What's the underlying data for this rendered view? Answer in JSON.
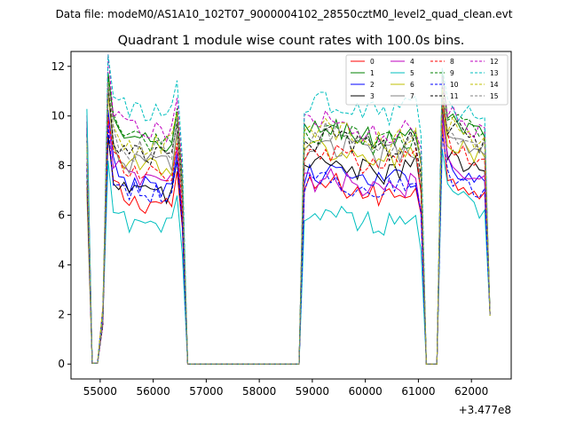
{
  "chart_data": {
    "type": "line",
    "suptitle": "Data file: modeM0/AS1A10_102T07_9000004102_28550cztM0_level2_quad_clean.evt",
    "title": "Quadrant 1 module wise count rates with 100.0s bins.",
    "xlabel": "",
    "ylabel": "",
    "x_offset_label": "+3.477e8",
    "xlim": [
      54450,
      62750
    ],
    "ylim": [
      -0.6,
      12.6
    ],
    "x_ticks": [
      55000,
      56000,
      57000,
      58000,
      59000,
      60000,
      61000,
      62000
    ],
    "x_tick_labels": [
      "55000",
      "56000",
      "57000",
      "58000",
      "59000",
      "60000",
      "61000",
      "62000"
    ],
    "y_ticks": [
      0,
      2,
      4,
      6,
      8,
      10,
      12
    ],
    "y_tick_labels": [
      "0",
      "2",
      "4",
      "6",
      "8",
      "10",
      "12"
    ],
    "grid": false,
    "legend_position": "upper right",
    "legend_columns": 4,
    "segments": [
      {
        "x_start": 54750,
        "x_end": 56550,
        "step": 100
      },
      {
        "x_start": 56550,
        "x_end": 58750,
        "step": 100,
        "constant": 0
      },
      {
        "x_start": 58750,
        "x_end": 61150,
        "step": 100
      },
      {
        "x_start": 61150,
        "x_end": 61350,
        "step": 100,
        "constant": 0
      },
      {
        "x_start": 61350,
        "x_end": 62350,
        "step": 100
      }
    ],
    "series": [
      {
        "name": "0",
        "color": "#ff0000",
        "dash": "solid",
        "segment_levels": [
          6.5,
          7.0,
          6.6
        ]
      },
      {
        "name": "1",
        "color": "#008000",
        "dash": "solid",
        "segment_levels": [
          8.9,
          9.3,
          8.8
        ]
      },
      {
        "name": "2",
        "color": "#0000ff",
        "dash": "solid",
        "segment_levels": [
          7.2,
          7.5,
          7.0
        ]
      },
      {
        "name": "3",
        "color": "#000000",
        "dash": "solid",
        "segment_levels": [
          6.9,
          7.9,
          7.4
        ]
      },
      {
        "name": "4",
        "color": "#bf00bf",
        "dash": "solid",
        "segment_levels": [
          7.4,
          7.2,
          7.2
        ]
      },
      {
        "name": "5",
        "color": "#00bfbf",
        "dash": "solid",
        "segment_levels": [
          5.5,
          5.9,
          5.8
        ]
      },
      {
        "name": "6",
        "color": "#bfbf00",
        "dash": "solid",
        "segment_levels": [
          8.0,
          8.4,
          7.9
        ]
      },
      {
        "name": "7",
        "color": "#808080",
        "dash": "solid",
        "segment_levels": [
          8.1,
          8.6,
          8.0
        ]
      },
      {
        "name": "8",
        "color": "#ff0000",
        "dash": "dashed",
        "segment_levels": [
          7.6,
          8.2,
          7.8
        ]
      },
      {
        "name": "9",
        "color": "#008000",
        "dash": "dashed",
        "segment_levels": [
          9.0,
          9.1,
          8.9
        ]
      },
      {
        "name": "10",
        "color": "#0000ff",
        "dash": "dashed",
        "segment_levels": [
          6.9,
          7.2,
          6.6
        ]
      },
      {
        "name": "11",
        "color": "#000000",
        "dash": "dashed",
        "segment_levels": [
          8.4,
          8.9,
          8.6
        ]
      },
      {
        "name": "12",
        "color": "#bf00bf",
        "dash": "dashed",
        "segment_levels": [
          9.4,
          9.6,
          9.0
        ]
      },
      {
        "name": "13",
        "color": "#00bfbf",
        "dash": "dashed",
        "segment_levels": [
          10.1,
          10.3,
          9.4
        ]
      },
      {
        "name": "14",
        "color": "#bfbf00",
        "dash": "dashed",
        "segment_levels": [
          8.8,
          9.2,
          8.6
        ]
      },
      {
        "name": "15",
        "color": "#808080",
        "dash": "dashed",
        "segment_levels": [
          8.6,
          9.0,
          8.4
        ]
      }
    ]
  }
}
